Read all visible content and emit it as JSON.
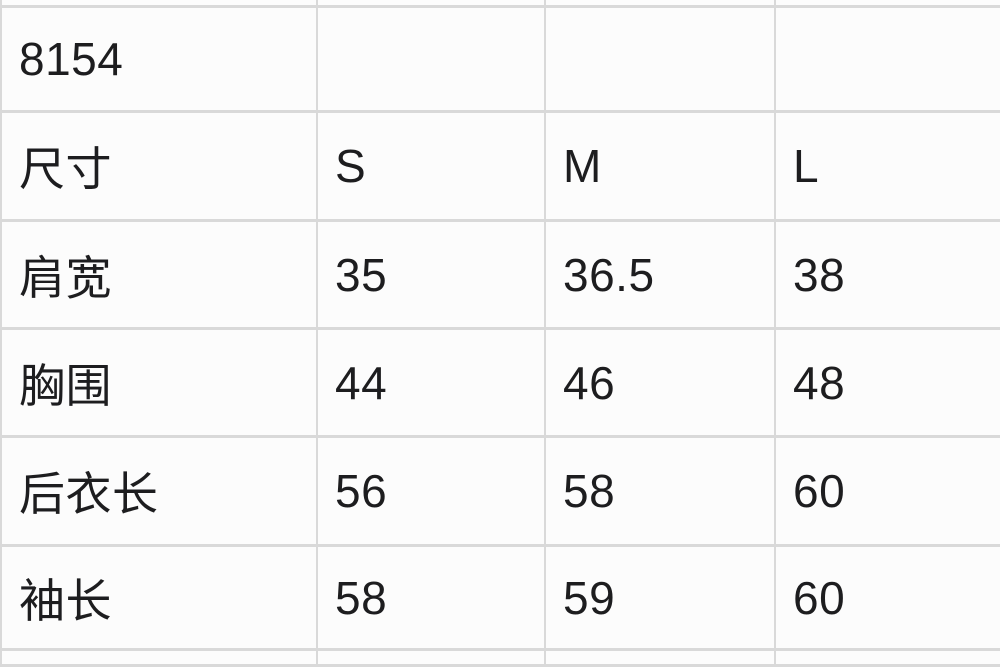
{
  "colors": {
    "background": "#fcfcfc",
    "grid_line": "#d9d9d9",
    "text": "#1d1d1f"
  },
  "table": {
    "description": "garment size chart",
    "model_number": "8154",
    "size_header_label": "尺寸",
    "sizes": [
      "S",
      "M",
      "L"
    ],
    "measurements": [
      {
        "label": "肩宽",
        "values": [
          "35",
          "36.5",
          "38"
        ]
      },
      {
        "label": "胸围",
        "values": [
          "44",
          "46",
          "48"
        ]
      },
      {
        "label": "后衣长",
        "values": [
          "56",
          "58",
          "60"
        ]
      },
      {
        "label": "袖长",
        "values": [
          "58",
          "59",
          "60"
        ]
      }
    ],
    "rows": [
      {
        "cells": [
          "",
          "",
          "",
          ""
        ]
      },
      {
        "cells": [
          "8154",
          "",
          "",
          ""
        ]
      },
      {
        "cells": [
          "尺寸",
          "S",
          "M",
          "L"
        ]
      },
      {
        "cells": [
          "肩宽",
          "35",
          "36.5",
          "38"
        ]
      },
      {
        "cells": [
          "胸围",
          "44",
          "46",
          "48"
        ]
      },
      {
        "cells": [
          "后衣长",
          "56",
          "58",
          "60"
        ]
      },
      {
        "cells": [
          "袖长",
          "58",
          "59",
          "60"
        ]
      },
      {
        "cells": [
          "",
          "",
          "",
          ""
        ]
      }
    ]
  }
}
